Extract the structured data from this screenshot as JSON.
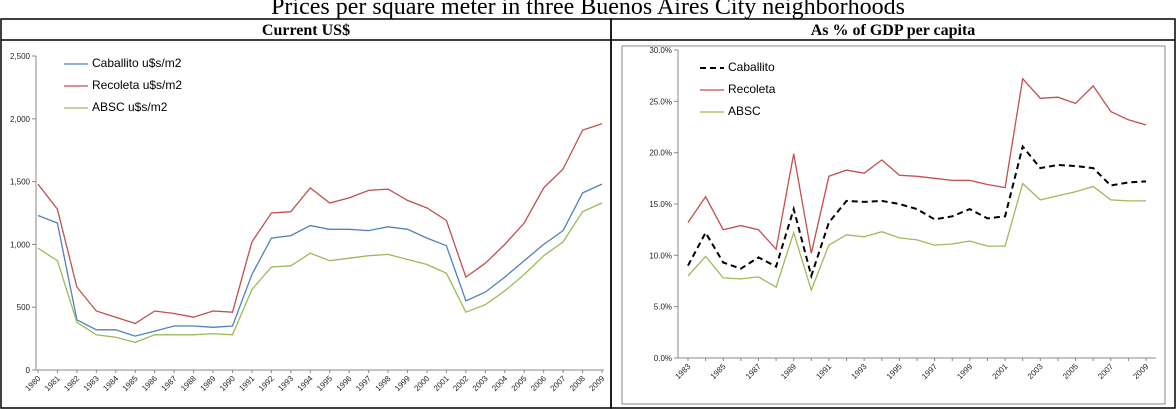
{
  "title": "Prices per square meter in three Buenos Aires City neighborhoods",
  "chart_data": [
    {
      "type": "line",
      "title": "Current US$",
      "categories": [
        "1980",
        "1981",
        "1982",
        "1983",
        "1984",
        "1985",
        "1986",
        "1987",
        "1988",
        "1989",
        "1990",
        "1991",
        "1992",
        "1993",
        "1994",
        "1995",
        "1996",
        "1997",
        "1998",
        "1999",
        "2000",
        "2001",
        "2002",
        "2003",
        "2004",
        "2005",
        "2006",
        "2007",
        "2008",
        "2009"
      ],
      "series": [
        {
          "name": "Caballito u$s/m2",
          "color": "#4f81bd",
          "dashed": false,
          "values": [
            1230,
            1170,
            400,
            320,
            320,
            270,
            310,
            350,
            350,
            340,
            350,
            760,
            1050,
            1070,
            1150,
            1120,
            1120,
            1110,
            1140,
            1120,
            1050,
            990,
            550,
            620,
            740,
            870,
            1000,
            1110,
            1410,
            1480
          ]
        },
        {
          "name": "Recoleta u$s/m2",
          "color": "#c0504d",
          "dashed": false,
          "values": [
            1480,
            1280,
            660,
            470,
            420,
            370,
            470,
            450,
            420,
            470,
            460,
            1020,
            1250,
            1260,
            1450,
            1330,
            1370,
            1430,
            1440,
            1350,
            1290,
            1190,
            740,
            850,
            1000,
            1170,
            1450,
            1600,
            1910,
            1960
          ]
        },
        {
          "name": "ABSC u$s/m2",
          "color": "#9bbb59",
          "dashed": false,
          "values": [
            970,
            870,
            380,
            280,
            260,
            220,
            280,
            280,
            280,
            290,
            280,
            640,
            820,
            830,
            930,
            870,
            890,
            910,
            920,
            880,
            840,
            770,
            460,
            520,
            630,
            760,
            910,
            1020,
            1260,
            1330
          ]
        }
      ],
      "ylim": [
        0,
        2500
      ],
      "yticks": [
        0,
        500,
        {
          "value": 1000,
          "label": "1,000"
        },
        {
          "value": 1500,
          "label": "1,500"
        },
        {
          "value": 2000,
          "label": "2,000"
        },
        {
          "value": 2500,
          "label": "2,500"
        }
      ],
      "grid": false,
      "legend": "top-left"
    },
    {
      "type": "line",
      "title": "As % of GDP per capita",
      "categories": [
        "1983",
        null,
        "1985",
        null,
        "1987",
        null,
        "1989",
        null,
        "1991",
        null,
        "1993",
        null,
        "1995",
        null,
        "1997",
        null,
        "1999",
        null,
        "2001",
        null,
        "2003",
        null,
        "2005",
        null,
        "2007",
        null,
        "2009"
      ],
      "series": [
        {
          "name": "Caballito",
          "color": "#000000",
          "dashed": true,
          "values": [
            9.0,
            12.2,
            9.3,
            8.7,
            9.8,
            8.9,
            14.5,
            8.0,
            13.2,
            15.3,
            15.2,
            15.3,
            15.0,
            14.5,
            13.5,
            13.8,
            14.5,
            13.6,
            13.8,
            20.6,
            18.5,
            18.8,
            18.7,
            18.5,
            16.8,
            17.1,
            17.2
          ]
        },
        {
          "name": "Recoleta",
          "color": "#c0504d",
          "dashed": false,
          "values": [
            13.2,
            15.7,
            12.5,
            12.9,
            12.5,
            10.6,
            19.9,
            10.2,
            17.7,
            18.3,
            18.0,
            19.3,
            17.8,
            17.7,
            17.5,
            17.3,
            17.3,
            16.9,
            16.6,
            27.2,
            25.3,
            25.4,
            24.8,
            26.5,
            24.0,
            23.2,
            22.7
          ]
        },
        {
          "name": "ABSC",
          "color": "#9bbb59",
          "dashed": false,
          "values": [
            8.0,
            9.9,
            7.8,
            7.7,
            7.9,
            6.9,
            12.2,
            6.6,
            11.0,
            12.0,
            11.8,
            12.3,
            11.7,
            11.5,
            11.0,
            11.1,
            11.4,
            10.9,
            10.9,
            17.0,
            15.4,
            15.8,
            16.2,
            16.7,
            15.4,
            15.3,
            15.3
          ]
        }
      ],
      "ylim": [
        0,
        30
      ],
      "yticks": [
        {
          "value": 0,
          "label": "0.0%"
        },
        {
          "value": 5,
          "label": "5.0%"
        },
        {
          "value": 10,
          "label": "10.0%"
        },
        {
          "value": 15,
          "label": "15.0%"
        },
        {
          "value": 20,
          "label": "20.0%"
        },
        {
          "value": 25,
          "label": "25.0%"
        },
        {
          "value": 30,
          "label": "30.0%"
        }
      ],
      "grid": false,
      "legend": "top-left"
    }
  ]
}
